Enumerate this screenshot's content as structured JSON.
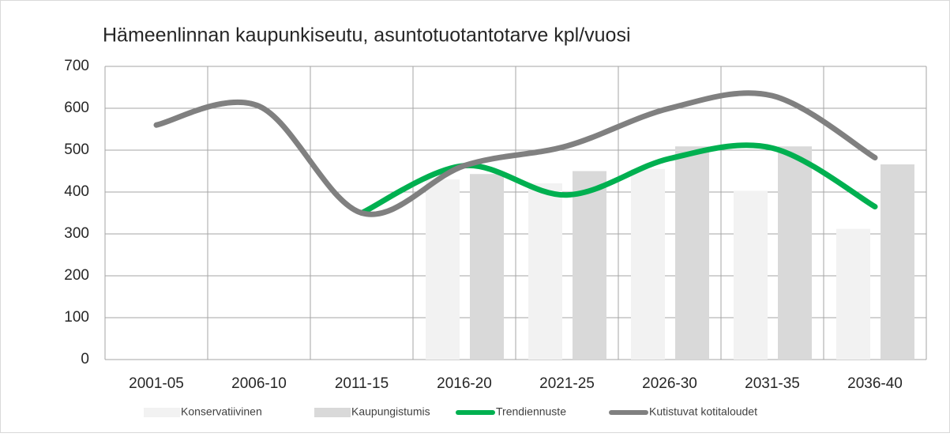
{
  "chart_data": {
    "type": "bar-line",
    "title": "Hämeenlinnan kaupunkiseutu, asuntotuotantotarve kpl/vuosi",
    "categories": [
      "2001-05",
      "2006-10",
      "2011-15",
      "2016-20",
      "2021-25",
      "2026-30",
      "2031-35",
      "2036-40"
    ],
    "series": [
      {
        "name": "Konservatiivinen",
        "type": "bar",
        "color": "#f2f2f2",
        "values": [
          null,
          null,
          null,
          430,
          421,
          455,
          403,
          312
        ]
      },
      {
        "name": "Kaupungistumis",
        "type": "bar",
        "color": "#d9d9d9",
        "values": [
          null,
          null,
          null,
          443,
          450,
          509,
          509,
          466
        ]
      },
      {
        "name": "Trendiennuste",
        "type": "line",
        "color": "#00b050",
        "values": [
          null,
          null,
          350,
          463,
          393,
          480,
          505,
          365
        ]
      },
      {
        "name": "Kutistuvat kotitaloudet",
        "type": "line",
        "color": "#808080",
        "values": [
          560,
          605,
          350,
          463,
          510,
          600,
          630,
          482
        ]
      }
    ],
    "ylim": [
      0,
      700
    ],
    "yticks": [
      0,
      100,
      200,
      300,
      400,
      500,
      600,
      700
    ],
    "grid": true,
    "legend": "bottom"
  }
}
